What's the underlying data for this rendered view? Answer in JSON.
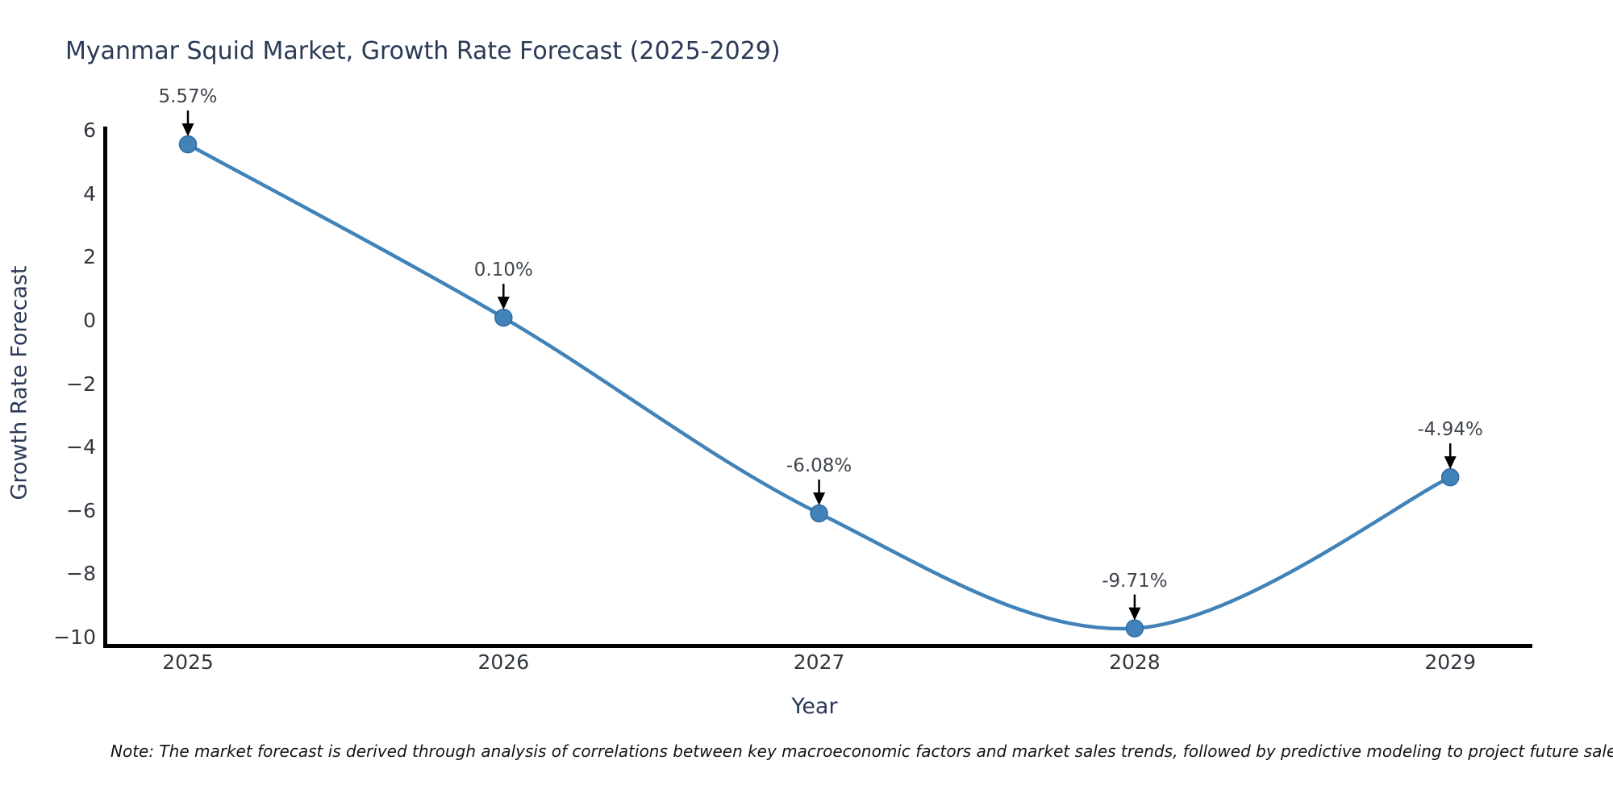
{
  "chart_data": {
    "type": "line",
    "title": "Myanmar Squid Market, Growth Rate Forecast (2025-2029)",
    "xlabel": "Year",
    "ylabel": "Growth Rate Forecast",
    "x": [
      2025,
      2026,
      2027,
      2028,
      2029
    ],
    "values": [
      5.57,
      0.1,
      -6.08,
      -9.71,
      -4.94
    ],
    "point_labels": [
      "5.57%",
      "0.10%",
      "-6.08%",
      "-9.71%",
      "-4.94%"
    ],
    "xtick_labels": [
      "2025",
      "2026",
      "2027",
      "2028",
      "2029"
    ],
    "yticks": [
      6,
      4,
      2,
      0,
      -2,
      -4,
      -6,
      -8,
      -10
    ],
    "ytick_labels": [
      "6",
      "4",
      "2",
      "0",
      "−2",
      "−4",
      "−6",
      "−8",
      "−10"
    ],
    "ylim": [
      -10.4,
      6.4
    ],
    "grid": false,
    "legend": null,
    "curve_style": "smooth-spline",
    "line_color": "#4183b8",
    "marker_color": "#4183b8",
    "marker_edge_color": "#2e6da4",
    "axis_color": "#000000",
    "arrow_color": "#000000",
    "note": "Note: The market forecast is derived through analysis of correlations between key macroeconomic factors and market sales trends, followed by predictive modeling to project future sales."
  },
  "colors": {
    "background": "#ffffff",
    "title": "#2b3a57",
    "axis_label": "#2b3a57",
    "tick_label": "#32373e",
    "annotation_text": "#3f454c",
    "note_text": "#141414"
  }
}
